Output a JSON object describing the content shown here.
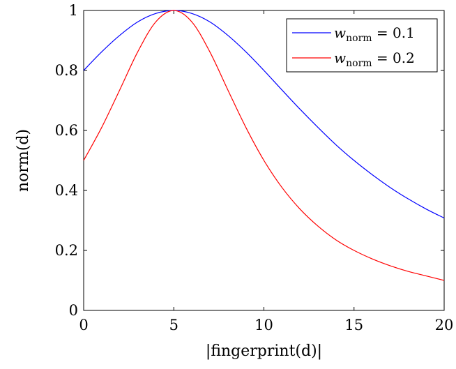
{
  "chart_data": {
    "type": "line",
    "title": "",
    "xlabel": "|fingerprint(d)|",
    "ylabel": "norm(d)",
    "xlim": [
      0,
      20
    ],
    "ylim": [
      0,
      1
    ],
    "xticks": [
      "0",
      "5",
      "10",
      "15",
      "20"
    ],
    "yticks": [
      "0",
      "0.2",
      "0.4",
      "0.6",
      "0.8",
      "1"
    ],
    "grid": false,
    "legend_position": "top-right",
    "x": [
      0,
      1,
      2,
      3,
      4,
      5,
      6,
      7,
      8,
      9,
      10,
      11,
      12,
      13,
      14,
      15,
      16,
      17,
      18,
      19,
      20
    ],
    "series": [
      {
        "name": "w_norm = 0.1",
        "legend": {
          "var": "w",
          "sub": "norm",
          "rest": " = 0.1"
        },
        "color": "#0000ff",
        "values": [
          0.8,
          0.862,
          0.917,
          0.962,
          0.99,
          1.0,
          0.99,
          0.962,
          0.917,
          0.862,
          0.8,
          0.735,
          0.671,
          0.61,
          0.552,
          0.5,
          0.453,
          0.41,
          0.372,
          0.338,
          0.308
        ]
      },
      {
        "name": "w_norm = 0.2",
        "legend": {
          "var": "w",
          "sub": "norm",
          "rest": " = 0.2"
        },
        "color": "#ff0000",
        "values": [
          0.5,
          0.61,
          0.735,
          0.862,
          0.962,
          1.0,
          0.962,
          0.862,
          0.735,
          0.61,
          0.5,
          0.41,
          0.338,
          0.281,
          0.235,
          0.2,
          0.172,
          0.149,
          0.13,
          0.115,
          0.1
        ]
      }
    ]
  }
}
